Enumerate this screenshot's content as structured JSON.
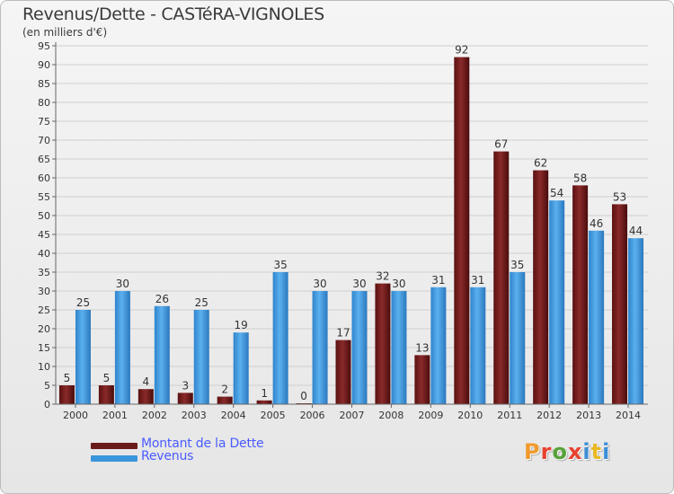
{
  "title": "Revenus/Dette - CASTéRA-VIGNOLES",
  "subtitle": "(en milliers d'€)",
  "logo": {
    "text": "Proxiti",
    "letter_colors": [
      "#f29a2e",
      "#e8412f",
      "#57a33a",
      "#e8412f",
      "#3d8fd6",
      "#e8b922",
      "#3d8fd6"
    ]
  },
  "colors": {
    "dette": "#6b1a1a",
    "revenus": "#3a96dc",
    "grid": "#cfcfcf",
    "axis": "#666666",
    "legend_text": "#4a5cff"
  },
  "chart_data": {
    "type": "bar",
    "categories": [
      "2000",
      "2001",
      "2002",
      "2003",
      "2004",
      "2005",
      "2006",
      "2007",
      "2008",
      "2009",
      "2010",
      "2011",
      "2012",
      "2013",
      "2014"
    ],
    "series": [
      {
        "name": "Montant de la Dette",
        "values": [
          5,
          5,
          4,
          3,
          2,
          1,
          0,
          17,
          32,
          13,
          92,
          67,
          62,
          58,
          53
        ]
      },
      {
        "name": "Revenus",
        "values": [
          25,
          30,
          26,
          25,
          19,
          35,
          30,
          30,
          30,
          31,
          31,
          35,
          54,
          46,
          44
        ]
      }
    ],
    "ylim": [
      0,
      95
    ],
    "yticks": [
      0,
      5,
      10,
      15,
      20,
      25,
      30,
      35,
      40,
      45,
      50,
      55,
      60,
      65,
      70,
      75,
      80,
      85,
      90,
      95
    ],
    "grid": true,
    "legend_position": "bottom-left",
    "data_labels": true
  }
}
